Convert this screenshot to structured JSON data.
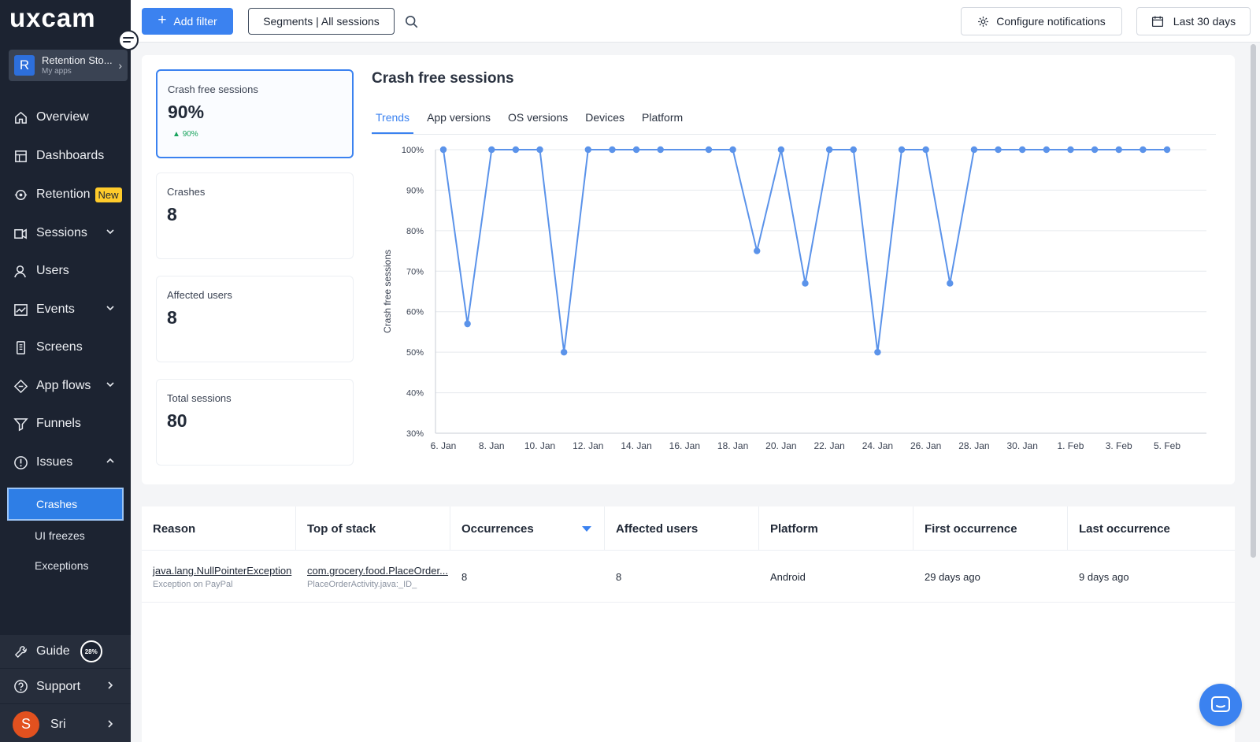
{
  "brand": {
    "logo_text": "uxcam"
  },
  "app_switcher": {
    "avatar_letter": "R",
    "name": "Retention Sto...",
    "subtitle": "My apps"
  },
  "sidebar": {
    "items": [
      {
        "label": "Overview",
        "icon": "home-icon"
      },
      {
        "label": "Dashboards",
        "icon": "dashboard-icon"
      },
      {
        "label": "Retention",
        "icon": "retention-icon",
        "badge": "New"
      },
      {
        "label": "Sessions",
        "icon": "sessions-icon",
        "expandable": true
      },
      {
        "label": "Users",
        "icon": "users-icon"
      },
      {
        "label": "Events",
        "icon": "events-icon",
        "expandable": true
      },
      {
        "label": "Screens",
        "icon": "screens-icon"
      },
      {
        "label": "App flows",
        "icon": "app-flows-icon",
        "expandable": true
      },
      {
        "label": "Funnels",
        "icon": "funnel-icon"
      },
      {
        "label": "Issues",
        "icon": "alert-circle-icon",
        "expanded": true
      }
    ],
    "issues_sub": [
      {
        "label": "Crashes",
        "active": true
      },
      {
        "label": "UI freezes"
      },
      {
        "label": "Exceptions"
      }
    ],
    "guide": {
      "label": "Guide",
      "progress_text": "28%",
      "progress": 0.28
    },
    "support": {
      "label": "Support"
    },
    "user": {
      "initial": "S",
      "name": "Sri"
    }
  },
  "topbar": {
    "add_filter": "Add filter",
    "segments": "Segments | All sessions",
    "configure": "Configure notifications",
    "date_range": "Last 30 days"
  },
  "stats": [
    {
      "label": "Crash free sessions",
      "value": "90%",
      "trend": "90%",
      "selected": true
    },
    {
      "label": "Crashes",
      "value": "8"
    },
    {
      "label": "Affected users",
      "value": "8"
    },
    {
      "label": "Total sessions",
      "value": "80"
    }
  ],
  "chart_panel": {
    "title": "Crash free sessions",
    "tabs": [
      "Trends",
      "App versions",
      "OS versions",
      "Devices",
      "Platform"
    ],
    "active_tab": "Trends"
  },
  "chart_data": {
    "type": "line",
    "title": "",
    "xlabel": "",
    "ylabel": "Crash free sessions",
    "ylim": [
      30,
      100
    ],
    "yticks": [
      "30%",
      "40%",
      "50%",
      "60%",
      "70%",
      "80%",
      "90%",
      "100%"
    ],
    "xticks": [
      "6. Jan",
      "8. Jan",
      "10. Jan",
      "12. Jan",
      "14. Jan",
      "16. Jan",
      "18. Jan",
      "20. Jan",
      "22. Jan",
      "24. Jan",
      "26. Jan",
      "28. Jan",
      "30. Jan",
      "1. Feb",
      "3. Feb",
      "5. Feb"
    ],
    "grid": true,
    "color": "#5b93ea",
    "series": [
      {
        "points": [
          [
            "6. Jan",
            100
          ],
          [
            "7. Jan",
            57
          ],
          [
            "8. Jan",
            100
          ],
          [
            "9. Jan",
            100
          ],
          [
            "10. Jan",
            100
          ],
          [
            "11. Jan",
            50
          ],
          [
            "12. Jan",
            100
          ],
          [
            "13. Jan",
            100
          ],
          [
            "14. Jan",
            100
          ],
          [
            "15. Jan",
            100
          ],
          [
            "17. Jan",
            100
          ],
          [
            "18. Jan",
            100
          ],
          [
            "19. Jan",
            75
          ],
          [
            "20. Jan",
            100
          ],
          [
            "21. Jan",
            67
          ],
          [
            "22. Jan",
            100
          ],
          [
            "23. Jan",
            100
          ],
          [
            "24. Jan",
            50
          ],
          [
            "25. Jan",
            100
          ],
          [
            "26. Jan",
            100
          ],
          [
            "27. Jan",
            67
          ],
          [
            "28. Jan",
            100
          ],
          [
            "29. Jan",
            100
          ],
          [
            "30. Jan",
            100
          ],
          [
            "31. Jan",
            100
          ],
          [
            "1. Feb",
            100
          ],
          [
            "2. Feb",
            100
          ],
          [
            "3. Feb",
            100
          ],
          [
            "4. Feb",
            100
          ],
          [
            "5. Feb",
            100
          ]
        ]
      }
    ]
  },
  "table": {
    "headers": [
      "Reason",
      "Top of stack",
      "Occurrences",
      "Affected users",
      "Platform",
      "First occurrence",
      "Last occurrence"
    ],
    "rows": [
      {
        "reason": "java.lang.NullPointerException",
        "reason_sub": "Exception on PayPal",
        "stack": "com.grocery.food.PlaceOrder...",
        "stack_sub": "PlaceOrderActivity.java:_ID_",
        "occurrences": "8",
        "affected": "8",
        "platform": "Android",
        "first": "29 days ago",
        "last": "9 days ago"
      }
    ]
  }
}
